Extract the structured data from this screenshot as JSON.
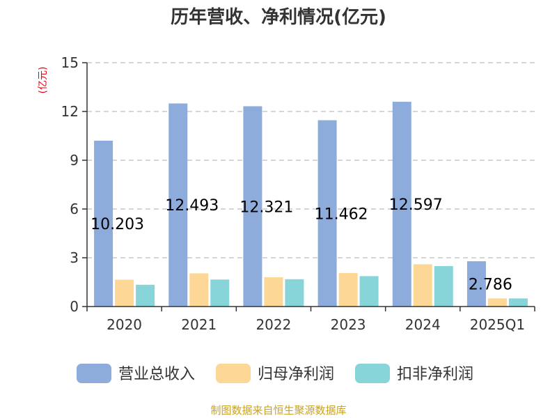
{
  "chart_data": {
    "type": "bar",
    "title": "历年营收、净利情况(亿元)",
    "ylabel": "(亿元)",
    "xlabel": "",
    "categories": [
      "2020",
      "2021",
      "2022",
      "2023",
      "2024",
      "2025Q1"
    ],
    "ylim": [
      0,
      15
    ],
    "yticks": [
      0,
      3,
      6,
      9,
      12,
      15
    ],
    "grid": true,
    "legend_position": "bottom",
    "series": [
      {
        "name": "营业总收入",
        "color": "#8eacdb",
        "values": [
          10.203,
          12.493,
          12.321,
          11.462,
          12.597,
          2.786
        ],
        "labels": [
          "10.203",
          "12.493",
          "12.321",
          "11.462",
          "12.597",
          "2.786"
        ]
      },
      {
        "name": "归母净利润",
        "color": "#fdd796",
        "values": [
          1.65,
          2.04,
          1.8,
          2.06,
          2.6,
          0.5
        ]
      },
      {
        "name": "扣非净利润",
        "color": "#88d5d9",
        "values": [
          1.34,
          1.66,
          1.68,
          1.87,
          2.49,
          0.5
        ]
      }
    ]
  },
  "footer": {
    "source": "制图数据来自恒生聚源数据库"
  }
}
